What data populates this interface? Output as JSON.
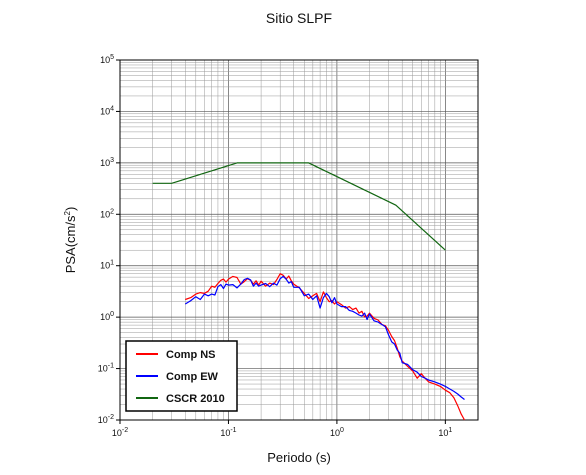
{
  "chart_data": {
    "type": "line",
    "title": "Sitio SLPF",
    "xlabel": "Periodo (s)",
    "ylabel": "PSA(cm/s2)",
    "ylabel_main": "PSA(cm/s",
    "ylabel_sup": "2",
    "ylabel_close": ")",
    "xscale": "log",
    "yscale": "log",
    "xlim": [
      0.01,
      20
    ],
    "ylim": [
      0.01,
      100000
    ],
    "grid": true,
    "legend_position": "bottom-left",
    "x_ticks": [
      {
        "base": "10",
        "exp": "-2",
        "value": 0.01
      },
      {
        "base": "10",
        "exp": "-1",
        "value": 0.1
      },
      {
        "base": "10",
        "exp": "0",
        "value": 1
      },
      {
        "base": "10",
        "exp": "1",
        "value": 10
      }
    ],
    "y_ticks": [
      {
        "base": "10",
        "exp": "-2",
        "value": 0.01
      },
      {
        "base": "10",
        "exp": "-1",
        "value": 0.1
      },
      {
        "base": "10",
        "exp": "0",
        "value": 1
      },
      {
        "base": "10",
        "exp": "1",
        "value": 10
      },
      {
        "base": "10",
        "exp": "2",
        "value": 100
      },
      {
        "base": "10",
        "exp": "3",
        "value": 1000
      },
      {
        "base": "10",
        "exp": "4",
        "value": 10000
      },
      {
        "base": "10",
        "exp": "5",
        "value": 100000
      }
    ],
    "series": [
      {
        "name": "Comp NS",
        "color": "#ff0000",
        "x": [
          0.04,
          0.045,
          0.05,
          0.055,
          0.06,
          0.065,
          0.07,
          0.075,
          0.08,
          0.085,
          0.09,
          0.095,
          0.1,
          0.11,
          0.12,
          0.13,
          0.14,
          0.15,
          0.16,
          0.17,
          0.18,
          0.19,
          0.2,
          0.22,
          0.24,
          0.26,
          0.28,
          0.3,
          0.32,
          0.34,
          0.36,
          0.38,
          0.4,
          0.45,
          0.5,
          0.55,
          0.6,
          0.65,
          0.7,
          0.75,
          0.8,
          0.85,
          0.9,
          0.95,
          1.0,
          1.1,
          1.2,
          1.3,
          1.4,
          1.5,
          1.6,
          1.7,
          1.8,
          1.9,
          2.0,
          2.2,
          2.4,
          2.6,
          2.8,
          3.0,
          3.2,
          3.4,
          3.6,
          3.8,
          4.0,
          4.5,
          5.0,
          5.5,
          6.0,
          6.5,
          7.0,
          8.0,
          9.0,
          10.0,
          11.0,
          12.0,
          13.0,
          14.0,
          15.0
        ],
        "y": [
          2.2,
          2.4,
          2.8,
          3.0,
          2.9,
          3.2,
          4.0,
          3.8,
          4.5,
          5.2,
          5.5,
          4.8,
          5.5,
          6.2,
          5.9,
          4.4,
          4.9,
          5.6,
          5.2,
          4.4,
          5.1,
          4.2,
          5.0,
          4.0,
          4.6,
          4.3,
          5.4,
          7.0,
          6.5,
          5.5,
          6.3,
          5.1,
          4.4,
          3.7,
          2.9,
          2.3,
          2.6,
          2.9,
          2.0,
          3.1,
          2.4,
          2.0,
          2.1,
          1.8,
          2.0,
          1.75,
          1.5,
          1.6,
          1.4,
          1.5,
          1.2,
          1.3,
          1.0,
          1.05,
          1.2,
          0.95,
          0.88,
          0.72,
          0.68,
          0.55,
          0.42,
          0.35,
          0.25,
          0.17,
          0.14,
          0.11,
          0.09,
          0.065,
          0.08,
          0.065,
          0.055,
          0.05,
          0.045,
          0.038,
          0.034,
          0.027,
          0.019,
          0.013,
          0.01
        ]
      },
      {
        "name": "Comp EW",
        "color": "#0000ff",
        "x": [
          0.04,
          0.045,
          0.05,
          0.055,
          0.06,
          0.065,
          0.07,
          0.075,
          0.08,
          0.085,
          0.09,
          0.095,
          0.1,
          0.11,
          0.12,
          0.13,
          0.14,
          0.15,
          0.16,
          0.17,
          0.18,
          0.19,
          0.2,
          0.22,
          0.24,
          0.26,
          0.28,
          0.3,
          0.32,
          0.34,
          0.36,
          0.38,
          0.4,
          0.45,
          0.5,
          0.55,
          0.6,
          0.65,
          0.7,
          0.75,
          0.8,
          0.85,
          0.9,
          0.95,
          1.0,
          1.1,
          1.2,
          1.3,
          1.4,
          1.5,
          1.6,
          1.7,
          1.8,
          1.9,
          2.0,
          2.2,
          2.4,
          2.6,
          2.8,
          3.0,
          3.2,
          3.4,
          3.6,
          3.8,
          4.0,
          4.5,
          5.0,
          5.5,
          6.0,
          6.5,
          7.0,
          8.0,
          9.0,
          10.0,
          11.0,
          12.0,
          13.0,
          14.0,
          15.0
        ],
        "y": [
          1.8,
          2.1,
          2.5,
          2.2,
          2.8,
          2.6,
          2.8,
          2.7,
          3.9,
          4.3,
          3.6,
          4.4,
          4.2,
          4.3,
          3.7,
          4.4,
          5.4,
          5.7,
          5.3,
          4.0,
          4.6,
          4.0,
          4.2,
          4.5,
          3.9,
          4.6,
          4.2,
          5.6,
          6.2,
          5.5,
          4.6,
          4.9,
          3.8,
          3.8,
          2.6,
          2.8,
          2.2,
          2.6,
          1.5,
          2.4,
          2.9,
          2.5,
          1.9,
          2.4,
          1.8,
          1.6,
          1.6,
          1.35,
          1.3,
          1.2,
          1.1,
          1.05,
          1.2,
          0.9,
          1.15,
          0.85,
          0.8,
          0.72,
          0.65,
          0.45,
          0.33,
          0.3,
          0.23,
          0.2,
          0.13,
          0.12,
          0.095,
          0.085,
          0.07,
          0.065,
          0.06,
          0.055,
          0.05,
          0.045,
          0.04,
          0.036,
          0.032,
          0.028,
          0.025
        ]
      },
      {
        "name": "CSCR 2010",
        "color": "#116611",
        "x": [
          0.02,
          0.03,
          0.12,
          0.55,
          3.5,
          10.0
        ],
        "y": [
          400,
          400,
          1000,
          1000,
          150,
          20
        ]
      }
    ]
  }
}
